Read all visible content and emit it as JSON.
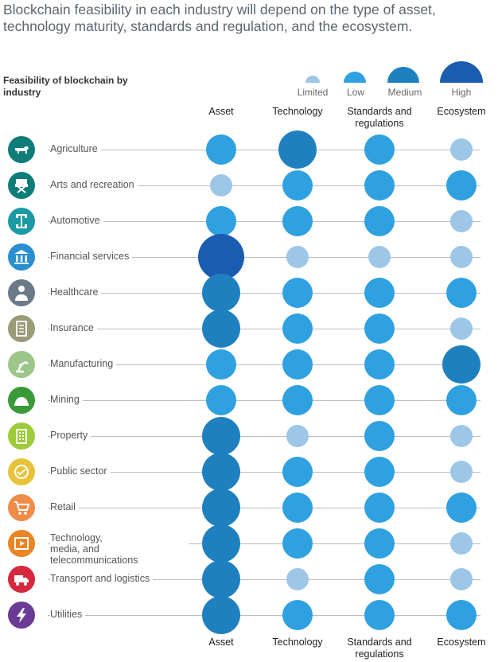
{
  "title": "Blockchain feasibility in each industry will depend on the type of asset, technology maturity, standards and regulation, and the ecosystem.",
  "feasibility_title": "Feasibility of blockchain by industry",
  "legend": [
    {
      "label": "Limited",
      "level": 1,
      "color": "#9dc6e7"
    },
    {
      "label": "Low",
      "level": 2,
      "color": "#2fa1e0"
    },
    {
      "label": "Medium",
      "level": 3,
      "color": "#1f80c0"
    },
    {
      "label": "High",
      "level": 4,
      "color": "#1a5cb0"
    }
  ],
  "columns_top": [
    "Asset",
    "Technology",
    "Standards and regulations",
    "Ecosystem"
  ],
  "columns_bottom": [
    "Asset",
    "Technology",
    "Standards and regulations",
    "Ecosystem"
  ],
  "chart_data": {
    "type": "table",
    "title": "Feasibility of blockchain by industry",
    "columns": [
      "Asset",
      "Technology",
      "Standards and regulations",
      "Ecosystem"
    ],
    "levels": [
      "Limited",
      "Low",
      "Medium",
      "High"
    ],
    "rows": [
      {
        "industry": "Agriculture",
        "icon": "cow-icon",
        "icon_color": "#0e7d7a",
        "values": [
          2,
          3,
          2,
          1
        ]
      },
      {
        "industry": "Arts and recreation",
        "icon": "directors-chair-icon",
        "icon_color": "#0e7d7a",
        "values": [
          1,
          2,
          2,
          2
        ]
      },
      {
        "industry": "Automotive",
        "icon": "car-chassis-icon",
        "icon_color": "#1b9aa5",
        "values": [
          2,
          2,
          2,
          1
        ]
      },
      {
        "industry": "Financial services",
        "icon": "bank-icon",
        "icon_color": "#2a8fd0",
        "values": [
          4,
          1,
          1,
          1
        ]
      },
      {
        "industry": "Healthcare",
        "icon": "doctor-icon",
        "icon_color": "#6b7a86",
        "values": [
          3,
          2,
          2,
          2
        ]
      },
      {
        "industry": "Insurance",
        "icon": "document-icon",
        "icon_color": "#9a9b78",
        "values": [
          3,
          2,
          2,
          1
        ]
      },
      {
        "industry": "Manufacturing",
        "icon": "robot-arm-icon",
        "icon_color": "#9cc68a",
        "values": [
          2,
          2,
          2,
          3
        ]
      },
      {
        "industry": "Mining",
        "icon": "hard-hat-icon",
        "icon_color": "#3a9a3a",
        "values": [
          2,
          2,
          2,
          2
        ]
      },
      {
        "industry": "Property",
        "icon": "building-icon",
        "icon_color": "#9ccb3b",
        "values": [
          3,
          1,
          2,
          1
        ]
      },
      {
        "industry": "Public sector",
        "icon": "handshake-icon",
        "icon_color": "#e8c23a",
        "values": [
          3,
          2,
          2,
          1
        ]
      },
      {
        "industry": "Retail",
        "icon": "shopping-cart-icon",
        "icon_color": "#ef8c4a",
        "values": [
          3,
          2,
          2,
          2
        ]
      },
      {
        "industry": "Technology, media, and telecommunications",
        "icon": "media-play-icon",
        "icon_color": "#e98523",
        "values": [
          3,
          2,
          2,
          1
        ]
      },
      {
        "industry": "Transport and logistics",
        "icon": "truck-icon",
        "icon_color": "#d5283d",
        "values": [
          3,
          1,
          2,
          1
        ]
      },
      {
        "industry": "Utilities",
        "icon": "lightning-icon",
        "icon_color": "#6a3a95",
        "values": [
          3,
          2,
          2,
          2
        ]
      }
    ]
  }
}
